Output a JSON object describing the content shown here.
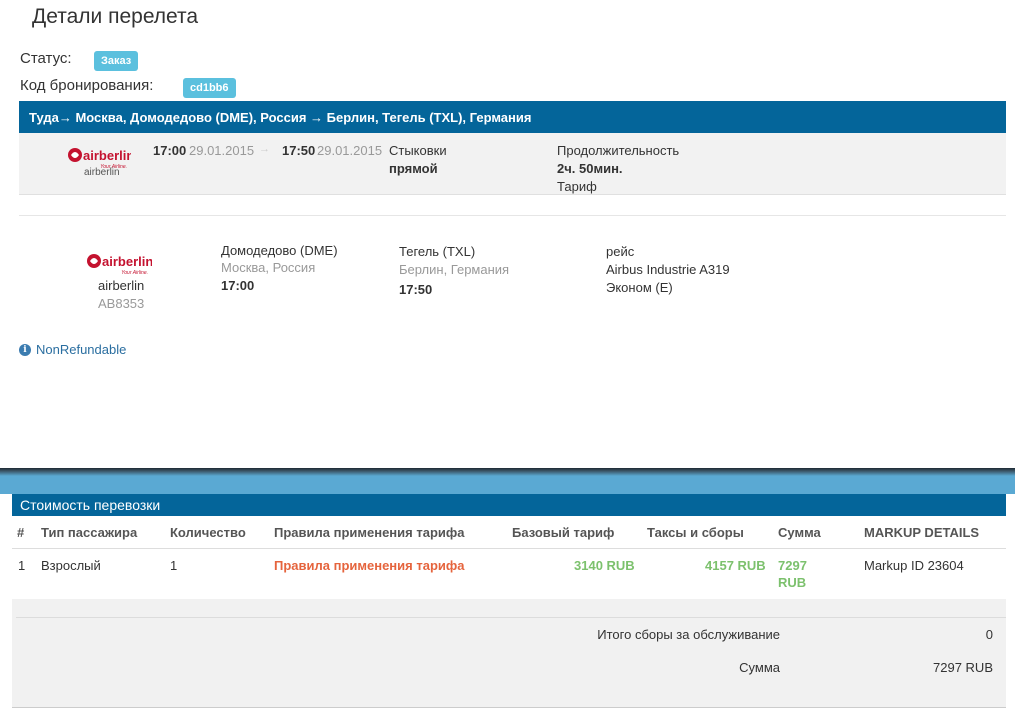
{
  "page": {
    "title": "Детали перелета"
  },
  "status": {
    "label": "Статус:",
    "value": "Заказ"
  },
  "booking": {
    "label": "Код бронирования:",
    "value": "cd1bb6"
  },
  "route": {
    "text": "Туда→ Москва, Домодедово (DME), Россия → Берлин, Тегель (TXL), Германия"
  },
  "summary": {
    "airline_logo": "airberlin",
    "airline_tagline": "Your Airline.",
    "airline_name": "airberlin",
    "dep_time": "17:00",
    "dep_date": "29.01.2015",
    "sep": "→",
    "arr_time": "17:50",
    "arr_date": "29.01.2015",
    "stops_label": "Стыковки",
    "stops_value": "прямой",
    "duration_label": "Продолжительность",
    "duration_value": "2ч. 50мин.",
    "tariff_label": "Тариф"
  },
  "segment": {
    "airline_logo": "airberlin",
    "airline_tagline": "Your Airline.",
    "airline_name": "airberlin",
    "flight_number": "AB8353",
    "dep_airport": "Домодедово (DME)",
    "dep_city": "Москва, Россия",
    "dep_time": "17:00",
    "arr_airport": "Тегель (TXL)",
    "arr_city": "Берлин, Германия",
    "arr_time": "17:50",
    "flight_label": "рейс",
    "aircraft": "Airbus Industrie A319",
    "cabin": "Эконом (E)"
  },
  "refund": {
    "text": "NonRefundable",
    "icon": "info-icon"
  },
  "cost": {
    "title": "Стоимость перевозки",
    "columns": [
      "#",
      "Тип пассажира",
      "Количество",
      "Правила применения тарифа",
      "Базовый тариф",
      "Таксы и сборы",
      "Сумма",
      "MARKUP DETAILS"
    ],
    "rows": [
      {
        "num": "1",
        "type": "Взрослый",
        "qty": "1",
        "rules": "Правила применения тарифа",
        "base": "3140 RUB",
        "taxes": "4157 RUB",
        "sum_line1": "7297",
        "sum_line2": "RUB",
        "markup": "Markup ID 23604"
      }
    ],
    "service_fee_label": "Итого сборы за обслуживание",
    "service_fee_value": "0",
    "total_label": "Сумма",
    "total_value": "7297 RUB"
  },
  "colors": {
    "header_blue": "#04659a",
    "badge": "#5bc0de",
    "green": "#7cc16d",
    "link_red": "#e5643d",
    "brand_red": "#c4122f"
  }
}
